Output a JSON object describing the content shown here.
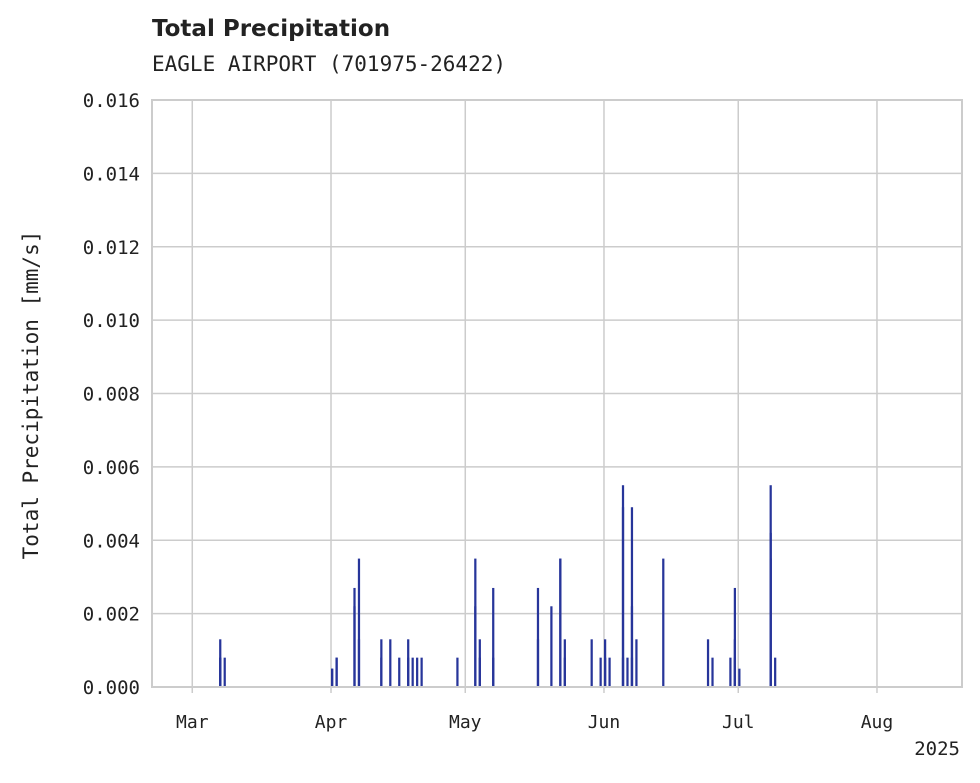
{
  "chart_data": {
    "type": "bar",
    "title": "Total Precipitation",
    "subtitle": "EAGLE AIRPORT (701975-26422)",
    "xlabel": "",
    "ylabel": "Total Precipitation [mm/s]",
    "xlim": [
      "2025-02-20",
      "2025-08-20"
    ],
    "ylim": [
      0,
      0.016
    ],
    "yticks": [
      "0.000",
      "0.002",
      "0.004",
      "0.006",
      "0.008",
      "0.010",
      "0.012",
      "0.014",
      "0.016"
    ],
    "xticks": [
      {
        "date": "2025-03-01",
        "label": "Mar"
      },
      {
        "date": "2025-04-01",
        "label": "Apr"
      },
      {
        "date": "2025-05-01",
        "label": "May"
      },
      {
        "date": "2025-06-01",
        "label": "Jun"
      },
      {
        "date": "2025-07-01",
        "label": "Jul"
      },
      {
        "date": "2025-08-01",
        "label": "Aug"
      }
    ],
    "x_offset_label": "2025",
    "grid": true,
    "bar_color": "#27359a",
    "series": [
      {
        "x": [
          "2025-03-07",
          "2025-03-07",
          "2025-03-07",
          "2025-03-08",
          "2025-04-01",
          "2025-04-01",
          "2025-04-02",
          "2025-04-02",
          "2025-04-06",
          "2025-04-06",
          "2025-04-07",
          "2025-04-07",
          "2025-04-12",
          "2025-04-12",
          "2025-04-14",
          "2025-04-16",
          "2025-04-18",
          "2025-04-18",
          "2025-04-19",
          "2025-04-20",
          "2025-04-21",
          "2025-04-29",
          "2025-05-03",
          "2025-05-03",
          "2025-05-04",
          "2025-05-04",
          "2025-05-07",
          "2025-05-07",
          "2025-05-17",
          "2025-05-17",
          "2025-05-20",
          "2025-05-22",
          "2025-05-22",
          "2025-05-23",
          "2025-05-23",
          "2025-05-29",
          "2025-05-31",
          "2025-06-01",
          "2025-06-01",
          "2025-06-02",
          "2025-06-05",
          "2025-06-05",
          "2025-06-05",
          "2025-06-06",
          "2025-06-07",
          "2025-06-07",
          "2025-06-07",
          "2025-06-08",
          "2025-06-14",
          "2025-06-24",
          "2025-06-25",
          "2025-06-29",
          "2025-06-30",
          "2025-06-30",
          "2025-06-30",
          "2025-07-01",
          "2025-07-08",
          "2025-07-08",
          "2025-07-08",
          "2025-07-09"
        ],
        "values": [
          0.0008,
          0.0008,
          0.0013,
          0.0008,
          0.0005,
          0.0005,
          0.0008,
          0.0008,
          0.0027,
          0.0022,
          0.0035,
          0.0013,
          0.0013,
          0.0008,
          0.0013,
          0.0008,
          0.0013,
          0.0008,
          0.0008,
          0.0008,
          0.0008,
          0.0008,
          0.0022,
          0.0035,
          0.0013,
          0.0008,
          0.0008,
          0.0027,
          0.0027,
          0.0013,
          0.0022,
          0.0035,
          0.0035,
          0.0013,
          0.0008,
          0.0013,
          0.0008,
          0.0008,
          0.0013,
          0.0008,
          0.0055,
          0.0049,
          0.0008,
          0.0008,
          0.0008,
          0.0049,
          0.0022,
          0.0013,
          0.0035,
          0.0013,
          0.0008,
          0.0008,
          0.0027,
          0.0013,
          0.0008,
          0.0005,
          0.0042,
          0.0055,
          0.0035,
          0.0008
        ]
      }
    ]
  }
}
